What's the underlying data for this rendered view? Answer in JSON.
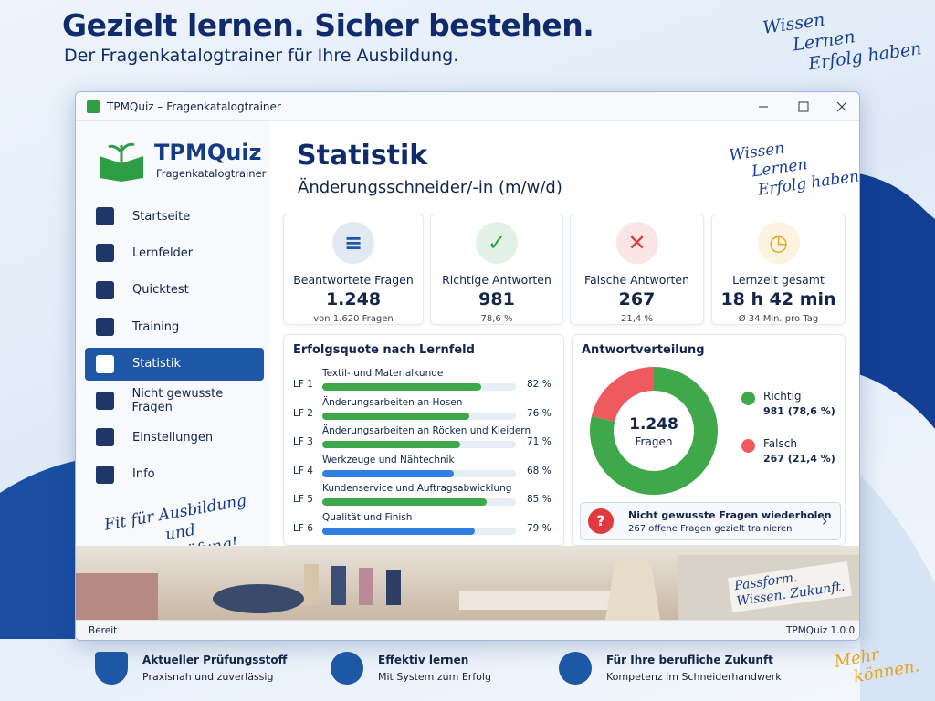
{
  "header": {
    "title": "Gezielt lernen. Sicher bestehen.",
    "subtitle": "Der Fragenkatalogtrainer für Ihre Ausbildung.",
    "slogan": [
      "Wissen",
      "Lernen",
      "Erfolg haben"
    ]
  },
  "window": {
    "title": "TPMQuiz – Fragenkatalogtrainer",
    "status": "Bereit",
    "version": "TPMQuiz 1.0.0"
  },
  "sidebar": {
    "logo": "TPMQuiz",
    "logo_sub": "Fragenkatalogtrainer",
    "items": [
      "Startseite",
      "Lernfelder",
      "Quicktest",
      "Training",
      "Statistik",
      "Nicht gewusste Fragen",
      "Einstellungen",
      "Info"
    ],
    "active": 4,
    "tagline": [
      "Fit für Ausbildung",
      "und Prüfung!"
    ]
  },
  "page": {
    "title": "Statistik",
    "subtitle": "Änderungsschneider/-in (m/w/d)",
    "slogan": [
      "Wissen",
      "Lernen",
      "Erfolg haben"
    ]
  },
  "cards": [
    {
      "label": "Beantwortete Fragen",
      "value": "1.248",
      "note": "von 1.620 Fragen",
      "color": "#1d57a6"
    },
    {
      "label": "Richtige Antworten",
      "value": "981",
      "note": "78,6 %",
      "color": "#2e9e44"
    },
    {
      "label": "Falsche Antworten",
      "value": "267",
      "note": "21,4 %",
      "color": "#e0393e"
    },
    {
      "label": "Lernzeit gesamt",
      "value": "18 h 42 min",
      "note": "Ø 34 Min. pro Tag",
      "color": "#e8a317"
    }
  ],
  "success": {
    "title": "Erfolgsquote nach Lernfeld",
    "xlim": [
      0,
      100
    ],
    "rows": [
      {
        "code": "LF 1",
        "name": "Textil- und Materialkunde",
        "value": 82,
        "label": "82 %",
        "color": "#3ea84a"
      },
      {
        "code": "LF 2",
        "name": "Änderungsarbeiten an Hosen",
        "value": 76,
        "label": "76 %",
        "color": "#3ea84a"
      },
      {
        "code": "LF 3",
        "name": "Änderungsarbeiten an Röcken und Kleidern",
        "value": 71,
        "label": "71 %",
        "color": "#3ea84a"
      },
      {
        "code": "LF 4",
        "name": "Werkzeuge und Nähtechnik",
        "value": 68,
        "label": "68 %",
        "color": "#2f80e0"
      },
      {
        "code": "LF 5",
        "name": "Kundenservice und Auftragsabwicklung",
        "value": 85,
        "label": "85 %",
        "color": "#3ea84a"
      },
      {
        "code": "LF 6",
        "name": "Qualität und Finish",
        "value": 79,
        "label": "79 %",
        "color": "#2f80e0"
      }
    ]
  },
  "distribution": {
    "title": "Antwortverteilung",
    "total": "1.248",
    "total_label": "Fragen",
    "series": [
      {
        "name": "Richtig",
        "value": 981,
        "label": "981 (78,6 %)",
        "color": "#3ea84a"
      },
      {
        "name": "Falsch",
        "value": 267,
        "label": "267 (21,4 %)",
        "color": "#ee5a5e"
      }
    ]
  },
  "repeat": {
    "title": "Nicht gewusste Fragen wiederholen",
    "subtitle": "267 offene Fragen gezielt trainieren"
  },
  "photo_caption": [
    "Passform.",
    "Wissen. Zukunft."
  ],
  "features": [
    {
      "title": "Aktueller Prüfungsstoff",
      "text": "Praxisnah und zuverlässig"
    },
    {
      "title": "Effektiv lernen",
      "text": "Mit System zum Erfolg"
    },
    {
      "title": "Für Ihre berufliche Zukunft",
      "text": "Kompetenz im Schneiderhandwerk"
    }
  ],
  "footer_slogan": [
    "Mehr",
    "können."
  ]
}
